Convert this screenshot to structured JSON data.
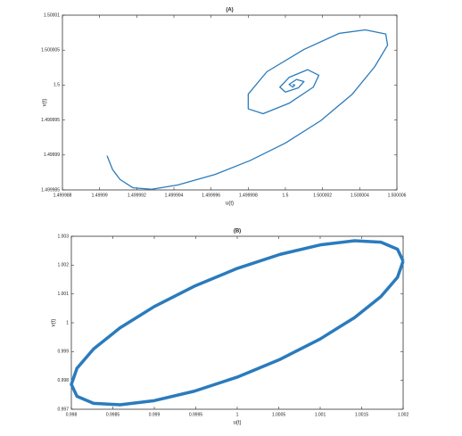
{
  "chart_data": [
    {
      "type": "line",
      "title": "(A)",
      "x_label": "u(t)",
      "y_label": "v(t)",
      "x": [
        1.4999904,
        1.4999907,
        1.4999911,
        1.4999918,
        1.4999928,
        1.4999942,
        1.4999962,
        1.4999981,
        1.5,
        1.5000019,
        1.5000036,
        1.5000048,
        1.5000055,
        1.5000054,
        1.5000043,
        1.5000029,
        1.500001,
        1.499999,
        1.499998,
        1.499998,
        1.4999988,
        1.5000002,
        1.5000015,
        1.5000018,
        1.5000012,
        1.5000002,
        1.4999997,
        1.5,
        1.5000007,
        1.500001,
        1.5000006,
        1.5000002,
        1.5000004,
        1.5000005,
        1.5000004
      ],
      "series": [
        {
          "color": "#2a7bbd",
          "values": [
            1.4999899,
            1.4999879,
            1.4999865,
            1.4999853,
            1.4999851,
            1.4999857,
            1.4999872,
            1.4999892,
            1.4999917,
            1.4999949,
            1.4999987,
            1.5000026,
            1.5000057,
            1.5000073,
            1.5000079,
            1.5000074,
            1.5000051,
            1.5000019,
            1.4999987,
            1.4999966,
            1.4999959,
            1.4999974,
            1.4999997,
            1.5000014,
            1.5000022,
            1.5000011,
            1.4999997,
            1.499999,
            1.4999996,
            1.5000005,
            1.5000008,
            1.5000001,
            1.4999997,
            1.5,
            1.5000001
          ]
        }
      ],
      "xlim": [
        1.499988,
        1.500006
      ],
      "xticks": [
        1.499988,
        1.49999,
        1.499992,
        1.499994,
        1.499996,
        1.499998,
        1.5,
        1.500002,
        1.500004,
        1.500006
      ],
      "ylim": [
        1.499985,
        1.50001
      ],
      "yticks": [
        1.499985,
        1.49999,
        1.499995,
        1.5,
        1.500005,
        1.50001
      ]
    },
    {
      "type": "line",
      "title": "(B)",
      "x_label": "u(t)",
      "y_label": "v(t)",
      "x": [
        1.002,
        1.001932,
        1.001732,
        1.001414,
        1.001,
        1.000518,
        1,
        0.999482,
        0.999,
        0.998586,
        0.998268,
        0.998068,
        0.998,
        0.998068,
        0.998268,
        0.998586,
        0.999,
        0.999482,
        1,
        1.000518,
        1.001,
        1.001414,
        1.001732,
        1.001932,
        1.002
      ],
      "series": [
        {
          "color": "#2a7bbd",
          "values": [
            1.002138,
            1.002553,
            1.002794,
            1.002844,
            1.002701,
            1.002374,
            1.001885,
            1.001267,
            1.000563,
            0.999821,
            0.999091,
            0.998423,
            0.997862,
            0.997447,
            0.997206,
            0.997156,
            0.997299,
            0.997626,
            0.998115,
            0.998733,
            0.999437,
            1.000179,
            1.000909,
            1.001577,
            1.002138
          ]
        }
      ],
      "xlim": [
        0.998,
        1.002
      ],
      "xticks": [
        0.998,
        0.9985,
        0.999,
        0.9995,
        1,
        1.0005,
        1.001,
        1.0015,
        1.002
      ],
      "ylim": [
        0.997,
        1.003
      ],
      "yticks": [
        0.997,
        0.998,
        0.999,
        1,
        1.001,
        1.002,
        1.003
      ]
    }
  ]
}
